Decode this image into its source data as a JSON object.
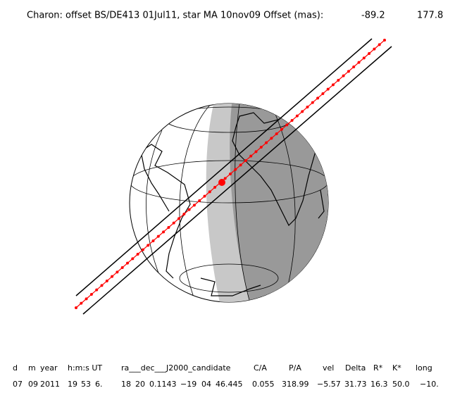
{
  "header": {
    "title": "Charon: offset BS/DE413 01Jul11, star MA 10nov09  Offset (mas):",
    "offset_ra": "-89.2",
    "offset_dec": "177.8"
  },
  "table": {
    "columns": [
      "d",
      "m",
      "year",
      "h:m:s UT",
      "ra___dec___J2000_candidate",
      "C/A",
      "P/A",
      "vel",
      "Delta",
      "R*",
      "K*",
      "long"
    ],
    "row": [
      "07",
      "09",
      "2011",
      "19",
      "53",
      "6.",
      "18",
      "20",
      "0.1143",
      "−19",
      "04",
      "46.445",
      "0.055",
      "318.99",
      "−5.57",
      "31.73",
      "16.3",
      "50.0",
      "−10."
    ]
  }
}
